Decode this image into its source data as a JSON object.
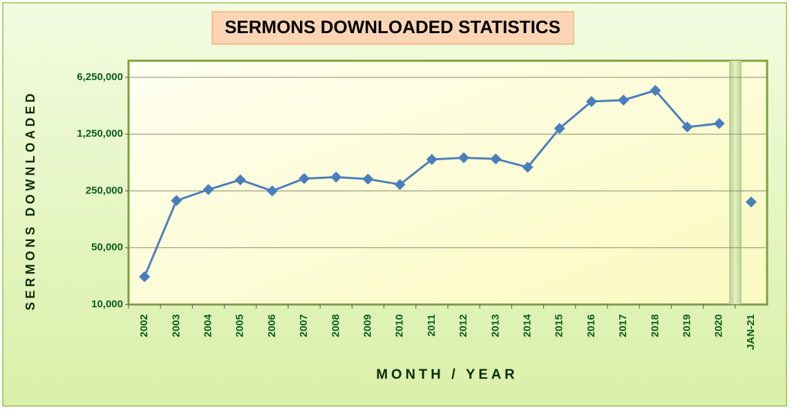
{
  "chart_data": {
    "type": "line",
    "title": "SERMONS DOWNLOADED STATISTICS",
    "x_label": "MONTH / YEAR",
    "y_label": "SERMONS DOWNLOADED",
    "categories": [
      "2002",
      "2003",
      "2004",
      "2005",
      "2006",
      "2007",
      "2008",
      "2009",
      "2010",
      "2011",
      "2012",
      "2013",
      "2014",
      "2015",
      "2016",
      "2017",
      "2018",
      "2019",
      "2020",
      "JAN-21"
    ],
    "series": [
      {
        "color": "#4a7ebb",
        "line": true,
        "values": [
          22000,
          190000,
          260000,
          342000,
          250000,
          355000,
          370000,
          350000,
          300000,
          610000,
          640000,
          620000,
          490000,
          1470000,
          3150000,
          3280000,
          4310000,
          1530000,
          1690000,
          null
        ]
      },
      {
        "color": "#4a7ebb",
        "line": false,
        "values": [
          null,
          null,
          null,
          null,
          null,
          null,
          null,
          null,
          null,
          null,
          null,
          null,
          null,
          null,
          null,
          null,
          null,
          null,
          null,
          183000
        ]
      }
    ],
    "log_scale": true,
    "ylim": [
      10000,
      10000000
    ],
    "yticks": [
      {
        "value": 10000,
        "label": "10,000"
      },
      {
        "value": 50000,
        "label": "50,000"
      },
      {
        "value": 250000,
        "label": "250,000"
      },
      {
        "value": 1250000,
        "label": "1,250,000"
      },
      {
        "value": 6250000,
        "label": "6,250,000"
      }
    ],
    "grid": true
  }
}
